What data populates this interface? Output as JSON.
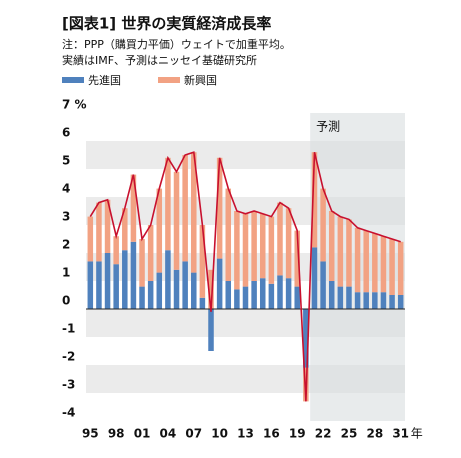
{
  "chart_data": {
    "type": "bar",
    "stacked": true,
    "title": "[図表1] 世界の実質経済成長率",
    "notes": [
      "注：PPP（購買力平価）ウェイトで加重平均。",
      "実績はIMF、予測はニッセイ基礎研究所"
    ],
    "categories": [
      "95",
      null,
      null,
      "98",
      null,
      null,
      "01",
      null,
      null,
      "04",
      null,
      null,
      "07",
      null,
      null,
      "10",
      null,
      null,
      "13",
      null,
      null,
      "16",
      null,
      null,
      "19",
      null,
      null,
      "22",
      null,
      null,
      "25",
      null,
      null,
      "28",
      null,
      null,
      "31"
    ],
    "x_unit": "年",
    "series": [
      {
        "name": "先進国",
        "color": "#4f81bd",
        "values": [
          1.7,
          1.7,
          2.0,
          1.6,
          2.1,
          2.4,
          0.8,
          1.0,
          1.3,
          2.1,
          1.4,
          1.7,
          1.3,
          0.4,
          -1.5,
          1.8,
          1.0,
          0.7,
          0.8,
          1.0,
          1.1,
          0.9,
          1.2,
          1.1,
          0.8,
          -2.1,
          2.2,
          1.7,
          1.0,
          0.8,
          0.8,
          0.6,
          0.6,
          0.6,
          0.6,
          0.5,
          0.5
        ]
      },
      {
        "name": "新興国",
        "color": "#f2a283",
        "values": [
          1.6,
          2.1,
          1.9,
          1.0,
          1.5,
          2.4,
          1.7,
          2.0,
          3.0,
          3.3,
          3.5,
          3.8,
          4.3,
          2.6,
          1.4,
          3.6,
          3.3,
          2.8,
          2.6,
          2.5,
          2.3,
          2.4,
          2.6,
          2.5,
          2.0,
          -1.2,
          3.4,
          2.6,
          2.5,
          2.5,
          2.4,
          2.3,
          2.2,
          2.1,
          2.0,
          2.0,
          1.9
        ]
      }
    ],
    "total": {
      "color": "#c8102e",
      "values": [
        3.3,
        3.8,
        3.9,
        2.6,
        3.6,
        4.8,
        2.5,
        3.0,
        4.3,
        5.4,
        4.9,
        5.5,
        5.6,
        3.0,
        -0.1,
        5.4,
        4.3,
        3.5,
        3.4,
        3.5,
        3.4,
        3.3,
        3.8,
        3.6,
        2.8,
        -3.3,
        5.6,
        4.3,
        3.5,
        3.3,
        3.2,
        2.9,
        2.8,
        2.7,
        2.6,
        2.5,
        2.4
      ]
    },
    "forecast": {
      "label": "予測",
      "from": 26
    },
    "ylim": [
      -4,
      7
    ],
    "yticks": [
      -4,
      -3,
      -2,
      -1,
      0,
      1,
      2,
      3,
      4,
      5,
      6,
      {
        "value": 7,
        "label": "7 %"
      }
    ]
  }
}
